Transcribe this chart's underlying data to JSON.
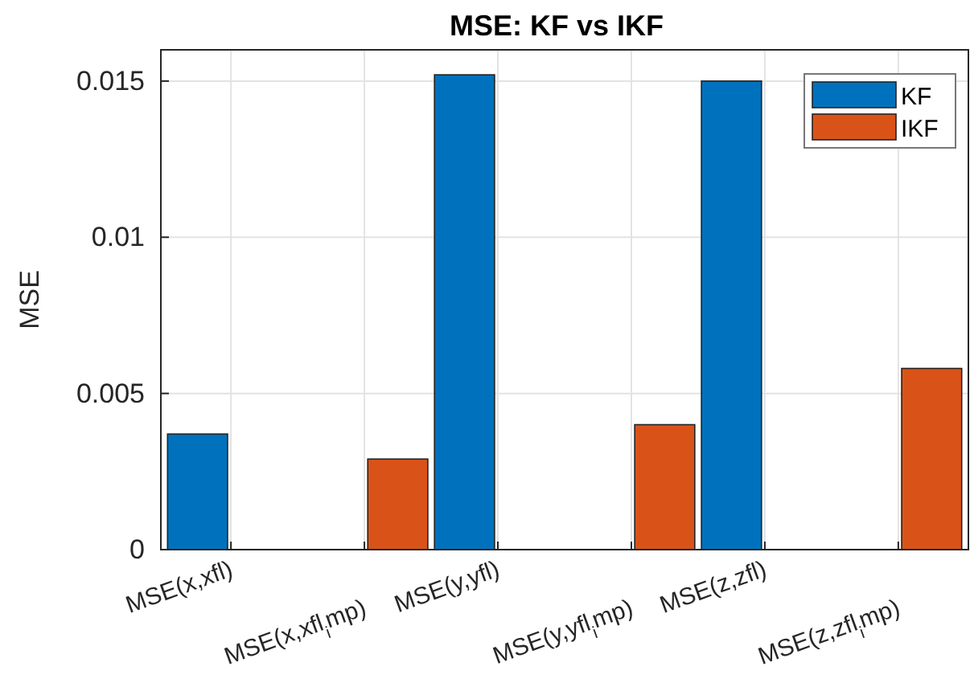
{
  "chart_data": {
    "type": "bar",
    "title": "MSE: KF vs IKF",
    "ylabel": "MSE",
    "categories": [
      "MSE(x,xfl)",
      "MSE(x,xfl$_{i}$mp)",
      "MSE(y,yfl)",
      "MSE(y,yfl$_{i}$mp)",
      "MSE(z,zfl)",
      "MSE(z,zfl$_{i}$mp)"
    ],
    "series": [
      {
        "name": "KF",
        "color": "#0072bd",
        "values": [
          0.0037,
          null,
          0.0152,
          null,
          0.015,
          null
        ]
      },
      {
        "name": "IKF",
        "color": "#d95319",
        "values": [
          null,
          0.0029,
          null,
          0.004,
          null,
          0.0058
        ]
      }
    ],
    "ylim": [
      0,
      0.016
    ],
    "yticks": [
      0,
      0.005,
      0.01,
      0.015
    ],
    "grid": true,
    "legend": "top right"
  }
}
